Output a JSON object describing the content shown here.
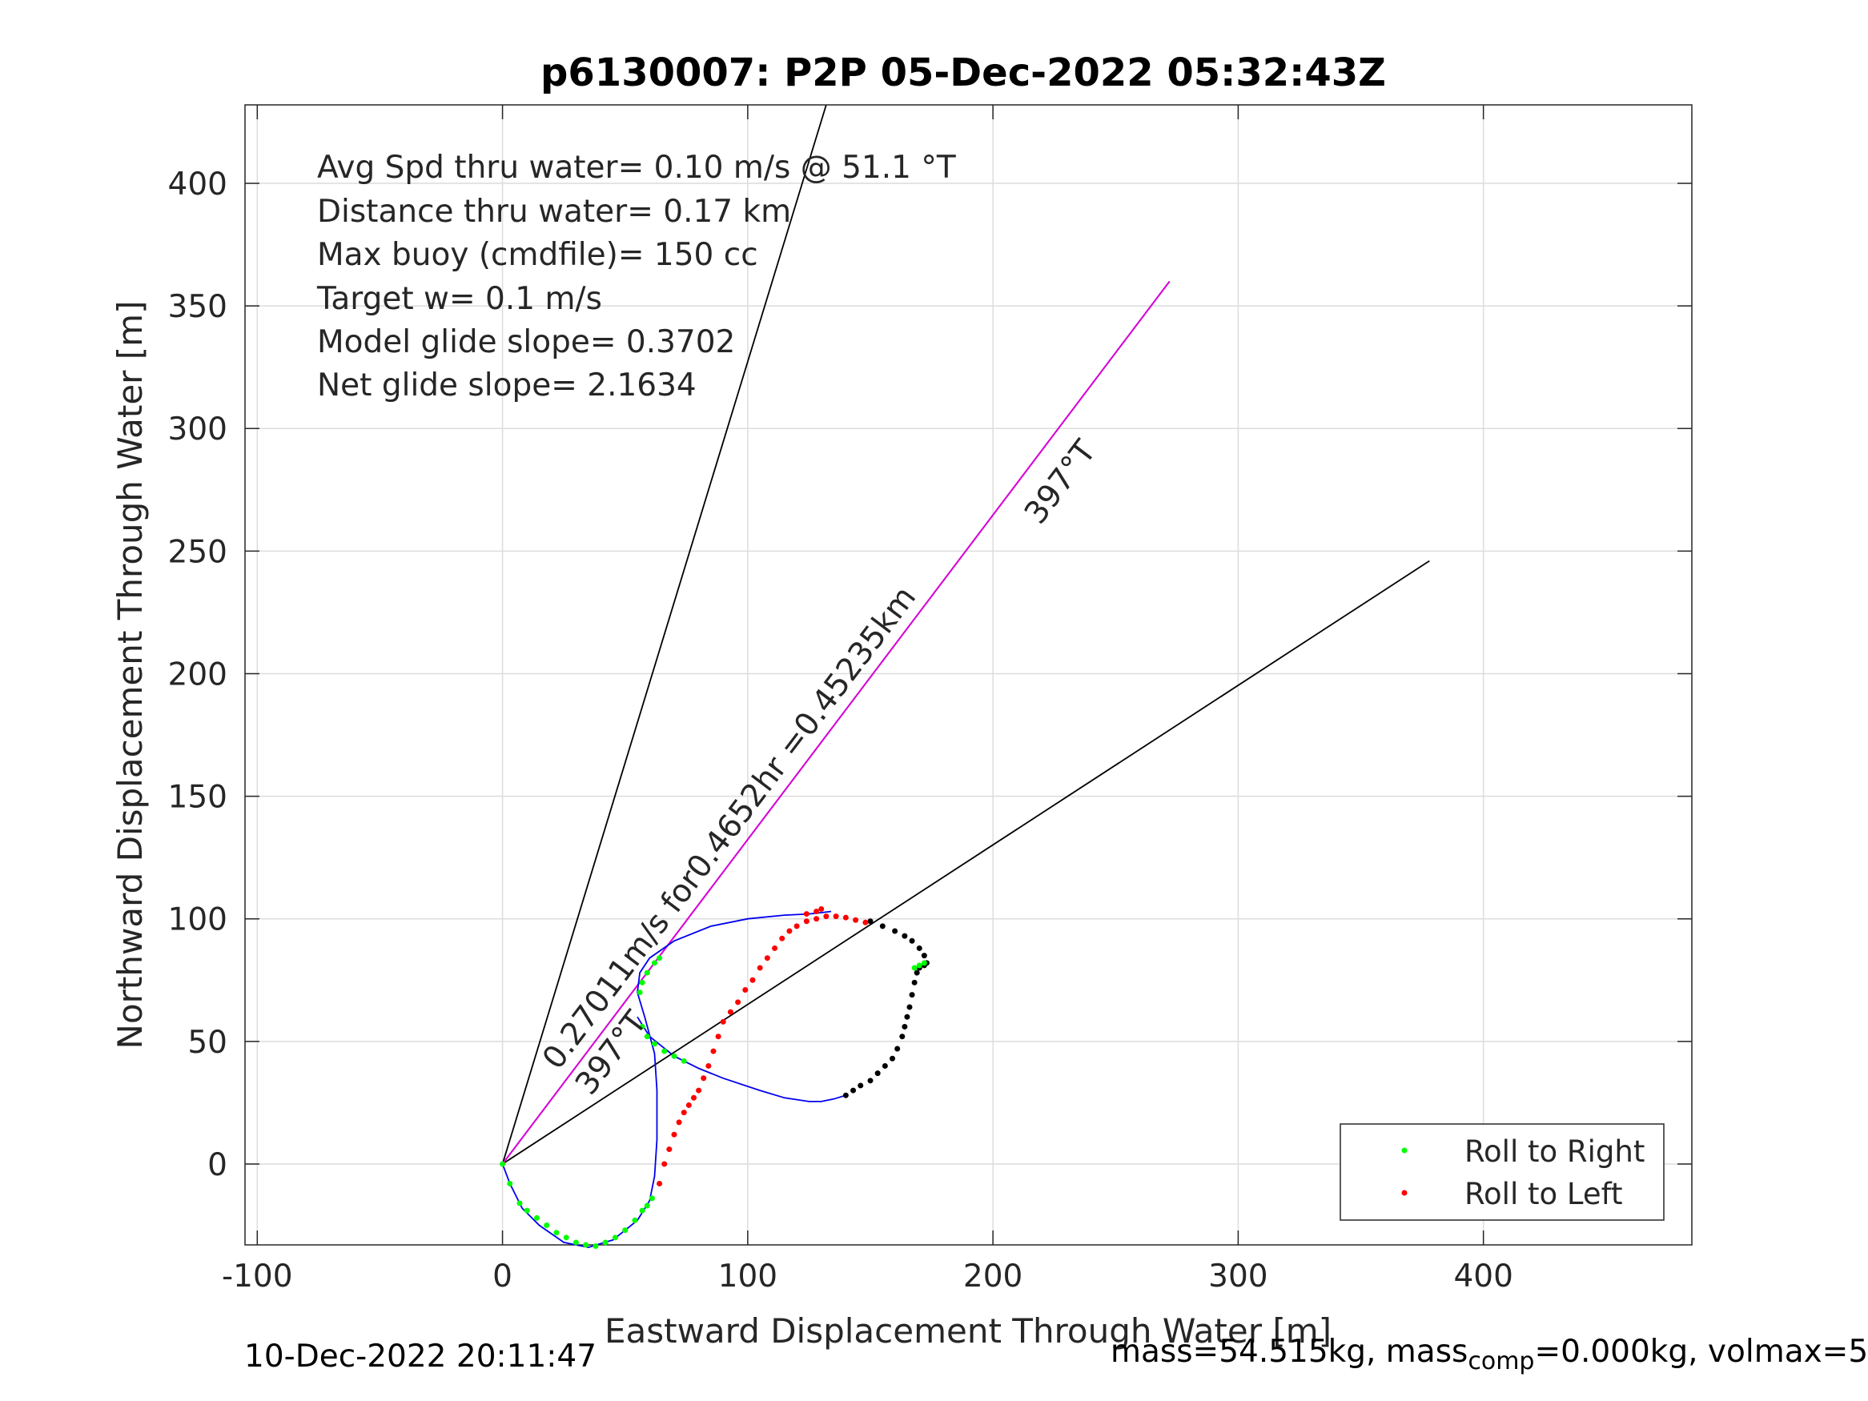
{
  "chart_data": {
    "type": "scatter",
    "title": "p6130007: P2P 05-Dec-2022 05:32:43Z",
    "xlabel": "Eastward Displacement Through Water [m]",
    "ylabel": "Northward Displacement Through Water [m]",
    "xlim": [
      -105,
      485
    ],
    "ylim": [
      -33,
      432
    ],
    "xticks": [
      -100,
      0,
      100,
      200,
      300,
      400
    ],
    "yticks": [
      0,
      50,
      100,
      150,
      200,
      250,
      300,
      350,
      400
    ],
    "grid": true,
    "legend": {
      "location": "bottom-right",
      "entries": [
        "Roll to Right",
        "Roll to Left"
      ]
    },
    "stats": [
      "Avg Spd thru water=  0.10 m/s @  51.1 °T",
      "Distance thru water=  0.17 km",
      "Max buoy (cmdfile)= 150 cc",
      "Target w= 0.1 m/s",
      "Model glide slope= 0.3702",
      "Net glide slope= 2.1634"
    ],
    "annotations": {
      "current": "0.27011m/s for0.4652hr =0.45235km",
      "heading_center": "397°T",
      "heading_lower": "397°T"
    },
    "reference_lines": [
      {
        "name": "heading-line-steep",
        "x": [
          0,
          132
        ],
        "y": [
          0,
          432
        ]
      },
      {
        "name": "heading-line-center",
        "x": [
          0,
          272
        ],
        "y": [
          0,
          360
        ]
      },
      {
        "name": "heading-line-shallow",
        "x": [
          0,
          378
        ],
        "y": [
          0,
          246
        ]
      }
    ],
    "current_vector": {
      "x": [
        0,
        272
      ],
      "y": [
        0,
        360
      ]
    },
    "track": {
      "x": [
        0,
        3,
        8,
        15,
        25,
        35,
        45,
        55,
        60,
        62,
        63,
        63,
        62,
        58,
        55,
        56,
        60,
        70,
        85,
        100,
        115,
        125,
        130,
        134
      ],
      "y": [
        0,
        -8,
        -18,
        -25,
        -32,
        -34,
        -31,
        -23,
        -15,
        -5,
        10,
        30,
        45,
        60,
        70,
        78,
        84,
        91,
        97,
        100,
        101.5,
        102,
        102.5,
        103
      ]
    },
    "track_lower": {
      "x": [
        55,
        60,
        70,
        80,
        90,
        105,
        115,
        125,
        130,
        135,
        140
      ],
      "y": [
        60,
        52,
        44,
        39,
        35,
        30,
        27,
        25.5,
        25.5,
        26.5,
        28
      ]
    },
    "roll_right": {
      "x": [
        0,
        3,
        7,
        10,
        14,
        18,
        22,
        26,
        30,
        34,
        38,
        42,
        46,
        50,
        54,
        57,
        59,
        61,
        56,
        57,
        59,
        62,
        64,
        57,
        59,
        62,
        66,
        70,
        74,
        168,
        170,
        172
      ],
      "y": [
        0,
        -8,
        -16,
        -19,
        -22,
        -25,
        -28,
        -30,
        -32,
        -33,
        -33.5,
        -32,
        -30,
        -27,
        -23,
        -19,
        -17,
        -14,
        70,
        74,
        78,
        82,
        84,
        56,
        52,
        49,
        46,
        44,
        42,
        80,
        81,
        82
      ]
    },
    "roll_left": {
      "x": [
        64,
        66,
        68,
        70,
        72,
        74,
        76,
        78,
        80,
        82,
        84,
        86,
        88,
        90,
        93,
        96,
        99,
        102,
        105,
        108,
        111,
        114,
        117,
        120,
        124,
        128,
        132,
        136,
        140,
        144,
        148,
        128,
        130,
        124
      ],
      "y": [
        -8,
        0,
        6,
        12,
        17,
        21,
        24,
        27,
        30,
        35,
        40,
        46,
        52,
        58,
        62,
        66,
        71,
        75,
        80,
        84,
        88,
        92,
        95,
        97,
        99,
        100,
        101,
        101,
        100.5,
        99.5,
        98.5,
        103,
        104,
        102
      ]
    },
    "other_points": {
      "x": [
        150,
        155,
        160,
        164,
        167,
        170,
        172,
        173,
        172,
        170,
        169,
        168,
        167,
        166,
        165,
        164,
        163,
        161,
        159,
        156,
        153,
        150,
        146,
        143,
        140
      ],
      "y": [
        99,
        97,
        95,
        93,
        91,
        88,
        85,
        82,
        81,
        80,
        78,
        74,
        69,
        64,
        60,
        56,
        52,
        47,
        43,
        40,
        37,
        34,
        32,
        30,
        28
      ]
    },
    "footer_date": "10-Dec-2022 20:11:47",
    "footer_mass_prefix": "mass=54.515kg, mass",
    "footer_mass_sub": "comp",
    "footer_mass_suffix": "=0.000kg, volmax=5"
  }
}
